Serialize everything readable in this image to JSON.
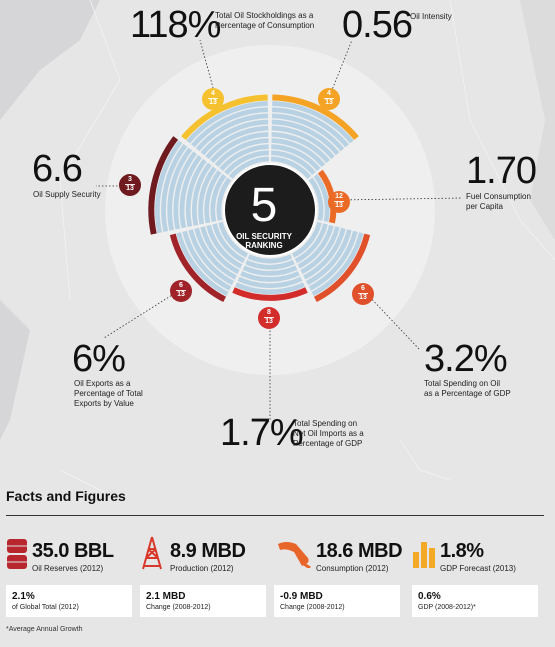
{
  "ranking": {
    "value": "5",
    "label_line1": "OIL SECURITY",
    "label_line2": "RANKING"
  },
  "metrics": [
    {
      "id": "stockholdings",
      "value": "118%",
      "label": [
        "Total Oil Stockholdings as a",
        "Percentage of Consumption"
      ],
      "rank": "4",
      "total": "13",
      "color": "#f5c12e"
    },
    {
      "id": "intensity",
      "value": "0.56",
      "label": [
        "Oil Intensity"
      ],
      "rank": "4",
      "total": "13",
      "color": "#f4a324"
    },
    {
      "id": "fuel",
      "value": "1.70",
      "label": [
        "Fuel Consumption",
        "per Capita"
      ],
      "rank": "12",
      "total": "13",
      "color": "#ea6a26"
    },
    {
      "id": "spending",
      "value": "3.2%",
      "label": [
        "Total Spending on Oil",
        "as a Percentage of GDP"
      ],
      "rank": "6",
      "total": "13",
      "color": "#e0502a"
    },
    {
      "id": "imports",
      "value": "1.7%",
      "label": [
        "Total Spending on",
        "Net Oil Imports as a",
        "Percentage of GDP"
      ],
      "rank": "8",
      "total": "13",
      "color": "#d22c2b"
    },
    {
      "id": "exports",
      "value": "6%",
      "label": [
        "Oil Exports as a",
        "Percentage of Total",
        "Exports by Value"
      ],
      "rank": "6",
      "total": "13",
      "color": "#a1232a"
    },
    {
      "id": "supply",
      "value": "6.6",
      "label": [
        "Oil Supply Security"
      ],
      "rank": "3",
      "total": "13",
      "color": "#6e1a1f"
    }
  ],
  "facts": {
    "title": "Facts and Figures",
    "items": [
      {
        "icon": "oil-barrels-icon",
        "value": "35.0 BBL",
        "label": "Oil Reserves (2012)",
        "sub_value": "2.1%",
        "sub_label": "of Global Total (2012)",
        "color": "#b8272d"
      },
      {
        "icon": "oil-derrick-icon",
        "value": "8.9 MBD",
        "label": "Production (2012)",
        "sub_value": "2.1 MBD",
        "sub_label": "Change (2008-2012)",
        "color": "#d8382a"
      },
      {
        "icon": "fuel-nozzle-icon",
        "value": "18.6 MBD",
        "label": "Consumption (2012)",
        "sub_value": "-0.9 MBD",
        "sub_label": "Change (2008-2012)",
        "color": "#e8652a"
      },
      {
        "icon": "bar-chart-icon",
        "value": "1.8%",
        "label": "GDP Forecast (2013)",
        "sub_value": "0.6%",
        "sub_label": "GDP (2008-2012)*",
        "color": "#f4aa26"
      }
    ],
    "footnote": "*Average Annual Growth"
  }
}
